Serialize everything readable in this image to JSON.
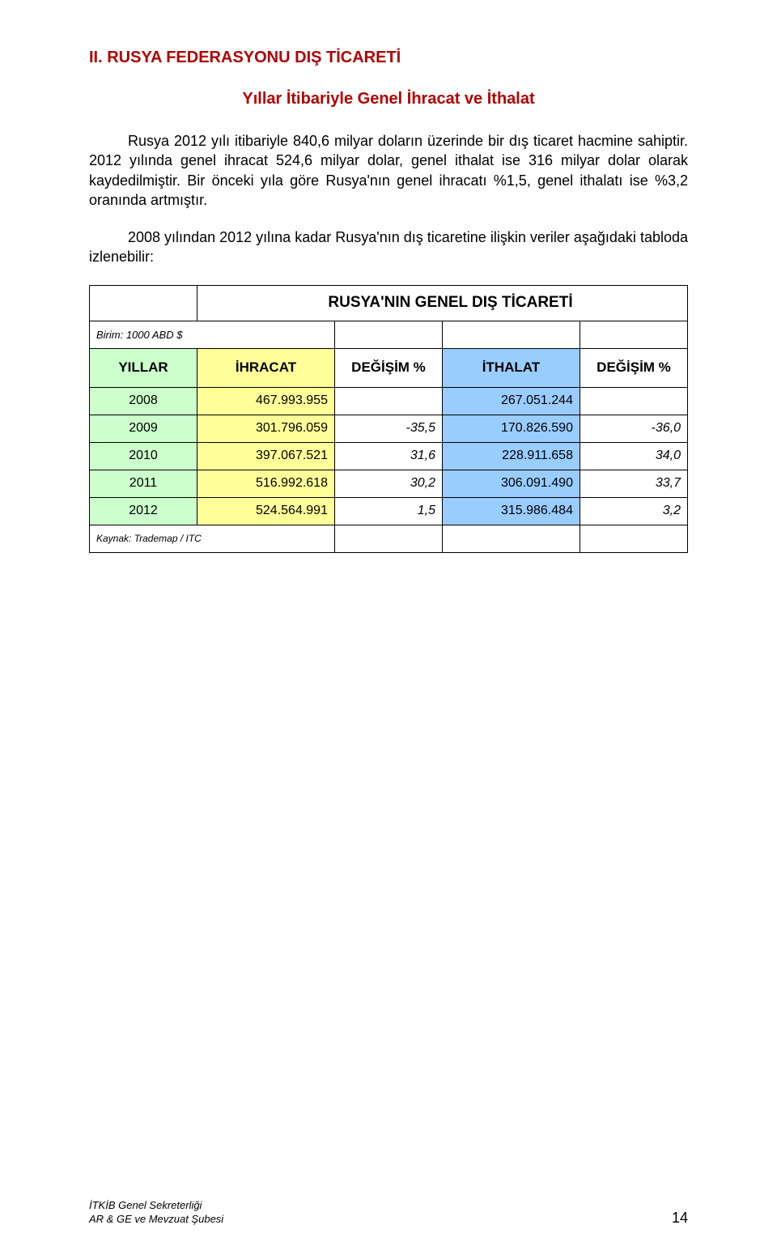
{
  "heading1_color": "#b30000",
  "heading2_color": "#b30000",
  "heading1": "II. RUSYA FEDERASYONU DIŞ TİCARETİ",
  "heading2": "Yıllar İtibariyle Genel İhracat ve İthalat",
  "para1": "Rusya 2012 yılı itibariyle 840,6 milyar doların üzerinde bir dış ticaret hacmine sahiptir. 2012 yılında genel ihracat 524,6 milyar dolar, genel ithalat ise 316 milyar dolar olarak kaydedilmiştir. Bir önceki yıla göre Rusya'nın genel ihracatı %1,5, genel ithalatı ise %3,2 oranında artmıştır.",
  "para2": "2008 yılından 2012 yılına kadar Rusya'nın dış ticaretine ilişkin veriler aşağıdaki tabloda izlenebilir:",
  "table": {
    "title": "RUSYA'NIN GENEL DIŞ TİCARETİ",
    "unit_label": "Birim: 1000 ABD $",
    "col_yillar_bg": "#ccffcc",
    "col_ihracat_bg": "#ffff99",
    "col_ithalat_bg": "#99ccff",
    "headers": {
      "yillar": "YILLAR",
      "ihracat": "İHRACAT",
      "degisim1": "DEĞİŞİM %",
      "ithalat": "İTHALAT",
      "degisim2": "DEĞİŞİM %"
    },
    "col_widths": [
      "18%",
      "23%",
      "18%",
      "23%",
      "18%"
    ],
    "rows": [
      {
        "year": "2008",
        "ihracat": "467.993.955",
        "d1": "",
        "ithalat": "267.051.244",
        "d2": ""
      },
      {
        "year": "2009",
        "ihracat": "301.796.059",
        "d1": "-35,5",
        "ithalat": "170.826.590",
        "d2": "-36,0"
      },
      {
        "year": "2010",
        "ihracat": "397.067.521",
        "d1": "31,6",
        "ithalat": "228.911.658",
        "d2": "34,0"
      },
      {
        "year": "2011",
        "ihracat": "516.992.618",
        "d1": "30,2",
        "ithalat": "306.091.490",
        "d2": "33,7"
      },
      {
        "year": "2012",
        "ihracat": "524.564.991",
        "d1": "1,5",
        "ithalat": "315.986.484",
        "d2": "3,2"
      }
    ],
    "source": "Kaynak: Trademap / ITC"
  },
  "footer": {
    "line1": "İTKİB Genel Sekreterliği",
    "line2": "AR & GE ve Mevzuat Şubesi",
    "page_number": "14"
  }
}
